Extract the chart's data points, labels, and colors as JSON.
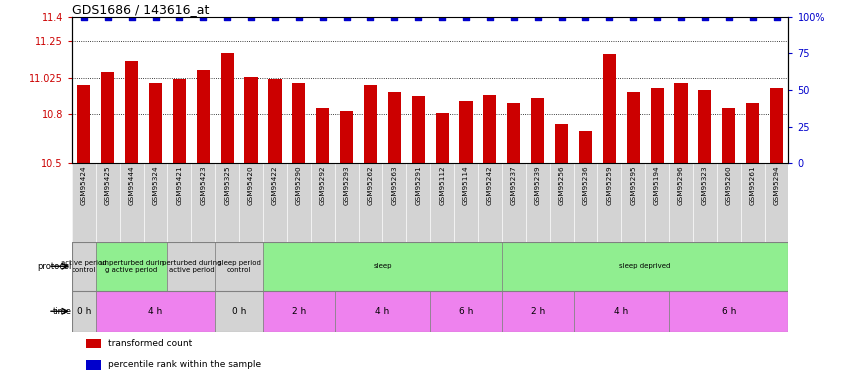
{
  "title": "GDS1686 / 143616_at",
  "sample_ids": [
    "GSM95424",
    "GSM95425",
    "GSM95444",
    "GSM95324",
    "GSM95421",
    "GSM95423",
    "GSM95325",
    "GSM95420",
    "GSM95422",
    "GSM95290",
    "GSM95292",
    "GSM95293",
    "GSM95262",
    "GSM95263",
    "GSM95291",
    "GSM95112",
    "GSM95114",
    "GSM95242",
    "GSM95237",
    "GSM95239",
    "GSM95256",
    "GSM95236",
    "GSM95259",
    "GSM95295",
    "GSM95194",
    "GSM95296",
    "GSM95323",
    "GSM95260",
    "GSM95261",
    "GSM95294"
  ],
  "bar_values": [
    10.98,
    11.06,
    11.13,
    10.99,
    11.02,
    11.07,
    11.18,
    11.03,
    11.02,
    10.99,
    10.84,
    10.82,
    10.98,
    10.94,
    10.91,
    10.81,
    10.88,
    10.92,
    10.87,
    10.9,
    10.74,
    10.7,
    11.17,
    10.94,
    10.96,
    10.99,
    10.95,
    10.84,
    10.87,
    10.96
  ],
  "percentile_values": [
    100,
    100,
    100,
    100,
    100,
    100,
    100,
    100,
    100,
    100,
    100,
    100,
    100,
    100,
    100,
    100,
    100,
    100,
    100,
    100,
    100,
    100,
    100,
    100,
    100,
    100,
    100,
    100,
    100,
    100
  ],
  "bar_color": "#cc0000",
  "percentile_color": "#0000cc",
  "ylim_left": [
    10.5,
    11.4
  ],
  "ylim_right": [
    0,
    100
  ],
  "yticks_left": [
    10.5,
    10.8,
    11.025,
    11.25,
    11.4
  ],
  "ytick_labels_left": [
    "10.5",
    "10.8",
    "11.025",
    "11.25",
    "11.4"
  ],
  "yticks_right": [
    0,
    25,
    50,
    75,
    100
  ],
  "ytick_labels_right": [
    "0",
    "25",
    "50",
    "75",
    "100%"
  ],
  "protocol_groups": [
    {
      "label": "active period\ncontrol",
      "start": 0,
      "end": 1,
      "color": "#d3d3d3"
    },
    {
      "label": "unperturbed durin\ng active period",
      "start": 1,
      "end": 4,
      "color": "#90ee90"
    },
    {
      "label": "perturbed during\nactive period",
      "start": 4,
      "end": 6,
      "color": "#d3d3d3"
    },
    {
      "label": "sleep period\ncontrol",
      "start": 6,
      "end": 8,
      "color": "#d3d3d3"
    },
    {
      "label": "sleep",
      "start": 8,
      "end": 18,
      "color": "#90ee90"
    },
    {
      "label": "sleep deprived",
      "start": 18,
      "end": 30,
      "color": "#90ee90"
    }
  ],
  "time_groups": [
    {
      "label": "0 h",
      "start": 0,
      "end": 1,
      "color": "#d3d3d3"
    },
    {
      "label": "4 h",
      "start": 1,
      "end": 6,
      "color": "#ee82ee"
    },
    {
      "label": "0 h",
      "start": 6,
      "end": 8,
      "color": "#d3d3d3"
    },
    {
      "label": "2 h",
      "start": 8,
      "end": 11,
      "color": "#ee82ee"
    },
    {
      "label": "4 h",
      "start": 11,
      "end": 15,
      "color": "#ee82ee"
    },
    {
      "label": "6 h",
      "start": 15,
      "end": 18,
      "color": "#ee82ee"
    },
    {
      "label": "2 h",
      "start": 18,
      "end": 21,
      "color": "#ee82ee"
    },
    {
      "label": "4 h",
      "start": 21,
      "end": 25,
      "color": "#ee82ee"
    },
    {
      "label": "6 h",
      "start": 25,
      "end": 30,
      "color": "#ee82ee"
    }
  ],
  "legend_items": [
    {
      "label": "transformed count",
      "color": "#cc0000"
    },
    {
      "label": "percentile rank within the sample",
      "color": "#0000cc"
    }
  ],
  "xlabels_bg": "#d3d3d3",
  "left_label_col": "#d3d3d3"
}
